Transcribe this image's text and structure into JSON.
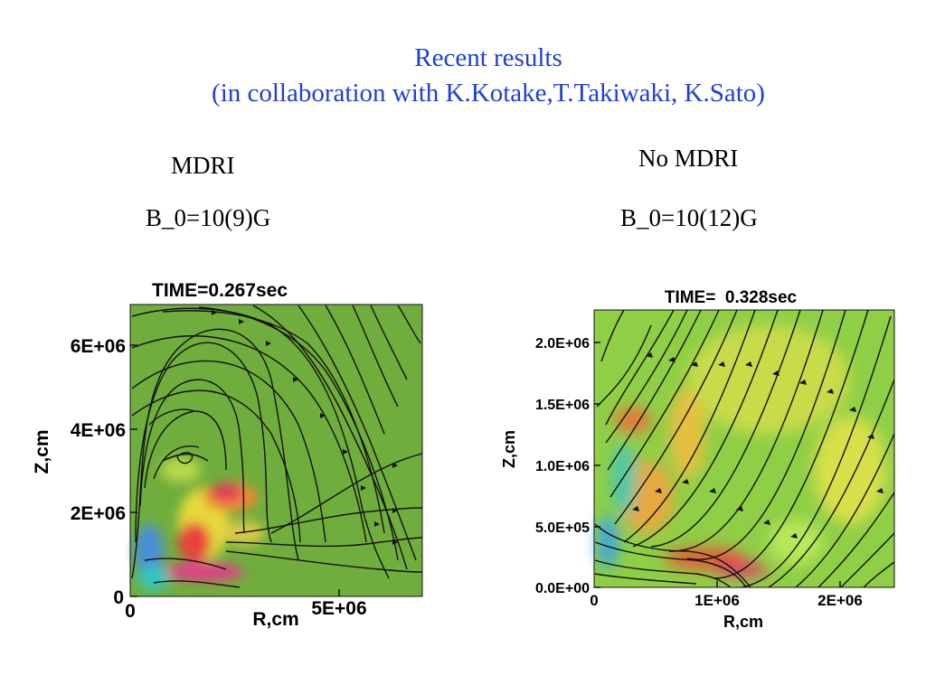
{
  "slide": {
    "title_line1": "Recent results",
    "title_line2": "(in collaboration with K.Kotake,T.Takiwaki, K.Sato)",
    "left_label": "MDRI",
    "left_field": "B_0=10(9)G",
    "right_label": "No MDRI",
    "right_field": "B_0=10(12)G"
  },
  "colors": {
    "title": "#1f3fd6",
    "plot_background": "#6fae3c"
  },
  "left_plot": {
    "time": "TIME=0.267sec",
    "ylabel": "Z,cm",
    "xlabel": "R,cm",
    "yticks": [
      "0",
      "2E+06",
      "4E+06",
      "6E+06"
    ],
    "xticks": [
      "0",
      "5E+06"
    ]
  },
  "right_plot": {
    "time": "TIME=  0.328sec",
    "ylabel": "Z,cm",
    "xlabel": "R,cm",
    "yticks": [
      "0.0E+00",
      "5.0E+05",
      "1.0E+06",
      "1.5E+06",
      "2.0E+06"
    ],
    "xticks": [
      "0",
      "1E+06",
      "2E+06"
    ]
  }
}
